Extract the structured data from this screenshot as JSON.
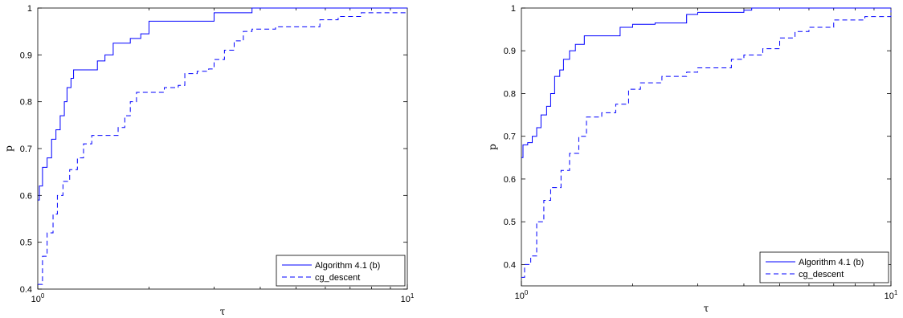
{
  "chart_data": [
    {
      "type": "line",
      "title": "",
      "xlabel": "τ",
      "ylabel": "p",
      "xscale": "log",
      "xlim": [
        1,
        10
      ],
      "ylim": [
        0.4,
        1
      ],
      "xticks": [
        1,
        10
      ],
      "xtick_labels": [
        {
          "base": "10",
          "exp": "0"
        },
        {
          "base": "10",
          "exp": "1"
        }
      ],
      "yticks": [
        0.4,
        0.5,
        0.6,
        0.7,
        0.8,
        0.9,
        1
      ],
      "ytick_labels": [
        "0.4",
        "0.5",
        "0.6",
        "0.7",
        "0.8",
        "0.9",
        "1"
      ],
      "grid": false,
      "legend_position": "bottom-right",
      "series": [
        {
          "name": "Algorithm 4.1 (b)",
          "style": "solid",
          "color": "#0000ff",
          "points": [
            [
              1,
              0.59
            ],
            [
              1.01,
              0.62
            ],
            [
              1.03,
              0.66
            ],
            [
              1.06,
              0.68
            ],
            [
              1.09,
              0.72
            ],
            [
              1.12,
              0.74
            ],
            [
              1.15,
              0.77
            ],
            [
              1.18,
              0.8
            ],
            [
              1.2,
              0.83
            ],
            [
              1.23,
              0.85
            ],
            [
              1.25,
              0.868
            ],
            [
              1.35,
              0.868
            ],
            [
              1.45,
              0.887
            ],
            [
              1.52,
              0.9
            ],
            [
              1.6,
              0.925
            ],
            [
              1.7,
              0.925
            ],
            [
              1.78,
              0.935
            ],
            [
              1.9,
              0.945
            ],
            [
              2.0,
              0.972
            ],
            [
              2.9,
              0.972
            ],
            [
              3.0,
              0.99
            ],
            [
              3.7,
              0.99
            ],
            [
              3.8,
              1.0
            ],
            [
              10,
              1.0
            ]
          ]
        },
        {
          "name": "cg_descent",
          "style": "dashed",
          "color": "#0000ff",
          "points": [
            [
              1,
              0.41
            ],
            [
              1.03,
              0.47
            ],
            [
              1.06,
              0.52
            ],
            [
              1.1,
              0.56
            ],
            [
              1.13,
              0.6
            ],
            [
              1.17,
              0.63
            ],
            [
              1.22,
              0.655
            ],
            [
              1.28,
              0.68
            ],
            [
              1.33,
              0.71
            ],
            [
              1.4,
              0.728
            ],
            [
              1.58,
              0.728
            ],
            [
              1.65,
              0.745
            ],
            [
              1.72,
              0.77
            ],
            [
              1.78,
              0.8
            ],
            [
              1.85,
              0.82
            ],
            [
              2.05,
              0.82
            ],
            [
              2.2,
              0.83
            ],
            [
              2.4,
              0.835
            ],
            [
              2.5,
              0.86
            ],
            [
              2.7,
              0.865
            ],
            [
              2.9,
              0.87
            ],
            [
              3.0,
              0.89
            ],
            [
              3.2,
              0.91
            ],
            [
              3.4,
              0.93
            ],
            [
              3.6,
              0.95
            ],
            [
              3.8,
              0.955
            ],
            [
              4.4,
              0.96
            ],
            [
              5.5,
              0.96
            ],
            [
              5.8,
              0.975
            ],
            [
              6.5,
              0.982
            ],
            [
              7.5,
              0.99
            ],
            [
              10,
              0.99
            ]
          ]
        }
      ]
    },
    {
      "type": "line",
      "title": "",
      "xlabel": "τ",
      "ylabel": "p",
      "xscale": "log",
      "xlim": [
        1,
        10
      ],
      "ylim": [
        0.35,
        1
      ],
      "xticks": [
        1,
        10
      ],
      "xtick_labels": [
        {
          "base": "10",
          "exp": "0"
        },
        {
          "base": "10",
          "exp": "1"
        }
      ],
      "yticks": [
        0.4,
        0.5,
        0.6,
        0.7,
        0.8,
        0.9,
        1
      ],
      "ytick_labels": [
        "0.4",
        "0.5",
        "0.6",
        "0.7",
        "0.8",
        "0.9",
        "1"
      ],
      "grid": false,
      "legend_position": "bottom-right",
      "series": [
        {
          "name": "Algorithm 4.1 (b)",
          "style": "solid",
          "color": "#0000ff",
          "points": [
            [
              1,
              0.65
            ],
            [
              1.01,
              0.68
            ],
            [
              1.04,
              0.685
            ],
            [
              1.07,
              0.7
            ],
            [
              1.1,
              0.72
            ],
            [
              1.13,
              0.75
            ],
            [
              1.17,
              0.77
            ],
            [
              1.2,
              0.8
            ],
            [
              1.23,
              0.84
            ],
            [
              1.27,
              0.855
            ],
            [
              1.3,
              0.88
            ],
            [
              1.35,
              0.9
            ],
            [
              1.4,
              0.915
            ],
            [
              1.48,
              0.935
            ],
            [
              1.75,
              0.935
            ],
            [
              1.85,
              0.955
            ],
            [
              2.0,
              0.962
            ],
            [
              2.3,
              0.965
            ],
            [
              2.7,
              0.965
            ],
            [
              2.8,
              0.985
            ],
            [
              3.0,
              0.99
            ],
            [
              4.0,
              0.995
            ],
            [
              4.2,
              1.0
            ],
            [
              10,
              1.0
            ]
          ]
        },
        {
          "name": "cg_descent",
          "style": "dashed",
          "color": "#0000ff",
          "points": [
            [
              1,
              0.37
            ],
            [
              1.02,
              0.4
            ],
            [
              1.06,
              0.42
            ],
            [
              1.1,
              0.5
            ],
            [
              1.15,
              0.55
            ],
            [
              1.2,
              0.58
            ],
            [
              1.28,
              0.62
            ],
            [
              1.35,
              0.66
            ],
            [
              1.43,
              0.7
            ],
            [
              1.5,
              0.745
            ],
            [
              1.65,
              0.755
            ],
            [
              1.8,
              0.775
            ],
            [
              1.95,
              0.81
            ],
            [
              2.1,
              0.825
            ],
            [
              2.4,
              0.84
            ],
            [
              2.8,
              0.85
            ],
            [
              3.0,
              0.86
            ],
            [
              3.4,
              0.86
            ],
            [
              3.7,
              0.88
            ],
            [
              4.0,
              0.89
            ],
            [
              4.5,
              0.905
            ],
            [
              5.0,
              0.93
            ],
            [
              5.5,
              0.945
            ],
            [
              6.0,
              0.955
            ],
            [
              7.0,
              0.972
            ],
            [
              8.5,
              0.98
            ],
            [
              10,
              0.995
            ]
          ]
        }
      ]
    }
  ]
}
